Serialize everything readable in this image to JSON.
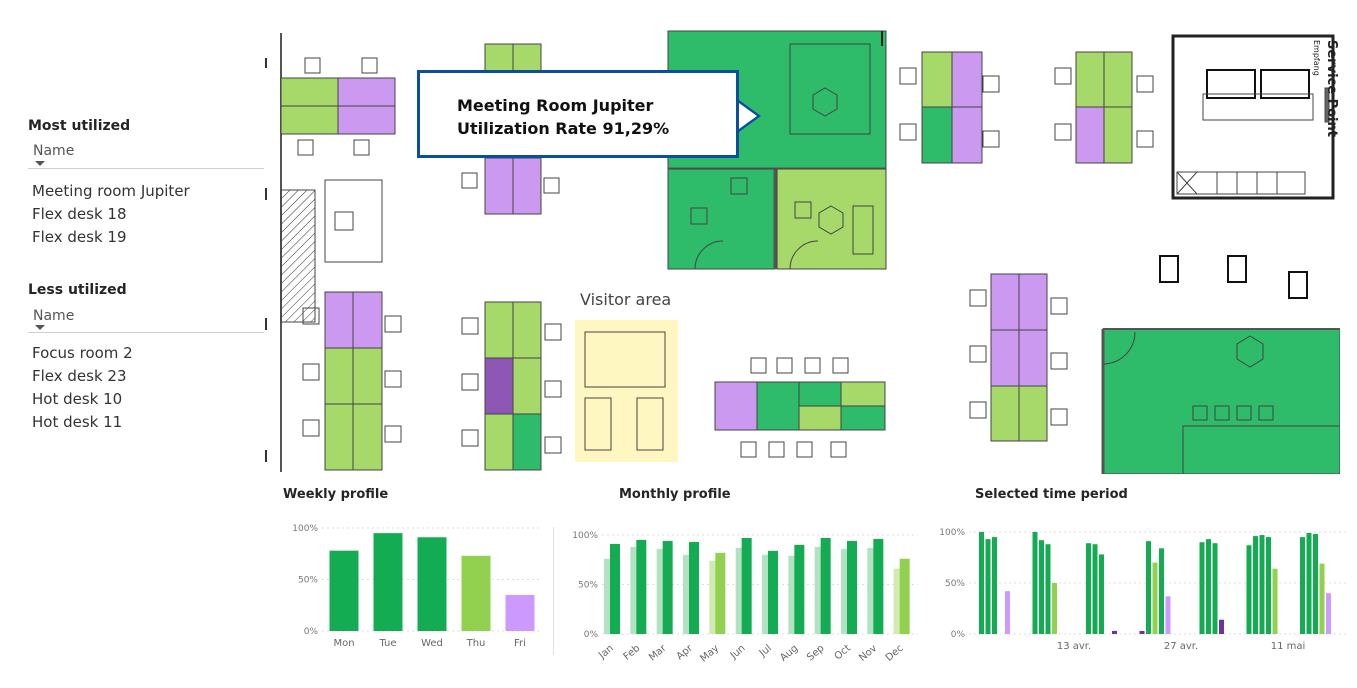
{
  "most_utilized": {
    "title": "Most utilized",
    "column_header": "Name",
    "items": [
      "Meeting room Jupiter",
      "Flex desk 18",
      "Flex desk 19"
    ]
  },
  "less_utilized": {
    "title": "Less utilized",
    "column_header": "Name",
    "items": [
      "Focus room 2",
      "Flex desk 23",
      "Hot desk 10",
      "Hot desk 11"
    ]
  },
  "floorplan": {
    "visitor_area_label": "Visitor area",
    "service_point_label": "Service Point",
    "service_point_sub": "Empfang",
    "tooltip": {
      "line1": "Meeting Room Jupiter",
      "line2": "Utilization Rate   91,29%"
    }
  },
  "colors": {
    "high": "#2ebc6a",
    "medium": "#a6d96a",
    "low": "#cc99f0",
    "low_dark": "#8e56b5",
    "visitor": "#fff7c2",
    "tooltip_border": "#0a4ea0"
  },
  "chart_data": [
    {
      "type": "bar",
      "title": "Weekly profile",
      "categories": [
        "Mon",
        "Tue",
        "Wed",
        "Thu",
        "Fri"
      ],
      "values": [
        78,
        95,
        91,
        73,
        35
      ],
      "bar_colors": [
        "#13ac52",
        "#13ac52",
        "#13ac52",
        "#92d050",
        "#cc99ff"
      ],
      "y_ticks": [
        "0%",
        "50%",
        "100%"
      ],
      "ylim": [
        0,
        100
      ],
      "grid": true
    },
    {
      "type": "bar",
      "title": "Monthly profile",
      "categories": [
        "Jan",
        "Feb",
        "Mar",
        "Apr",
        "May",
        "Jun",
        "Jul",
        "Aug",
        "Sep",
        "Oct",
        "Nov",
        "Dec"
      ],
      "series": [
        {
          "values": [
            76,
            88,
            86,
            80,
            74,
            87,
            80,
            79,
            88,
            86,
            87,
            66
          ],
          "colors": [
            "#b3e2c3",
            "#b3e2c3",
            "#b3e2c3",
            "#b3e2c3",
            "#d2eab2",
            "#b3e2c3",
            "#b3e2c3",
            "#b3e2c3",
            "#b3e2c3",
            "#b3e2c3",
            "#b3e2c3",
            "#d2eab2"
          ]
        },
        {
          "values": [
            91,
            95,
            94,
            93,
            82,
            97,
            84,
            90,
            97,
            94,
            96,
            76
          ],
          "colors": [
            "#13ac52",
            "#13ac52",
            "#13ac52",
            "#13ac52",
            "#92d050",
            "#13ac52",
            "#13ac52",
            "#13ac52",
            "#13ac52",
            "#13ac52",
            "#13ac52",
            "#92d050"
          ]
        }
      ],
      "y_ticks": [
        "0%",
        "50%",
        "100%"
      ],
      "ylim": [
        0,
        100
      ],
      "grid": true
    },
    {
      "type": "bar",
      "title": "Selected time period",
      "x_tick_labels": [
        "13 avr.",
        "27 avr.",
        "11 mai"
      ],
      "weeks": [
        {
          "values": [
            100,
            93,
            95,
            0,
            42
          ],
          "colors": [
            "#13ac52",
            "#13ac52",
            "#13ac52",
            "#13ac52",
            "#cc99ff"
          ]
        },
        {
          "values": [
            100,
            92,
            88,
            50,
            0
          ],
          "colors": [
            "#13ac52",
            "#13ac52",
            "#13ac52",
            "#92d050",
            "#cc99ff"
          ]
        },
        {
          "values": [
            89,
            88,
            78,
            0,
            3
          ],
          "colors": [
            "#13ac52",
            "#13ac52",
            "#13ac52",
            "#13ac52",
            "#7030a0"
          ]
        },
        {
          "values": [
            3,
            91,
            70,
            84,
            37
          ],
          "colors": [
            "#7030a0",
            "#13ac52",
            "#92d050",
            "#13ac52",
            "#cc99ff"
          ]
        },
        {
          "values": [
            0,
            90,
            93,
            89,
            14
          ],
          "colors": [
            "#13ac52",
            "#13ac52",
            "#13ac52",
            "#13ac52",
            "#7030a0"
          ]
        },
        {
          "values": [
            87,
            96,
            97,
            95,
            64
          ],
          "colors": [
            "#13ac52",
            "#13ac52",
            "#13ac52",
            "#13ac52",
            "#92d050"
          ]
        },
        {
          "values": [
            95,
            99,
            98,
            69,
            40
          ],
          "colors": [
            "#13ac52",
            "#13ac52",
            "#13ac52",
            "#92d050",
            "#cc99ff"
          ]
        }
      ],
      "y_ticks": [
        "0%",
        "50%",
        "100%"
      ],
      "ylim": [
        0,
        100
      ],
      "grid": true
    }
  ]
}
